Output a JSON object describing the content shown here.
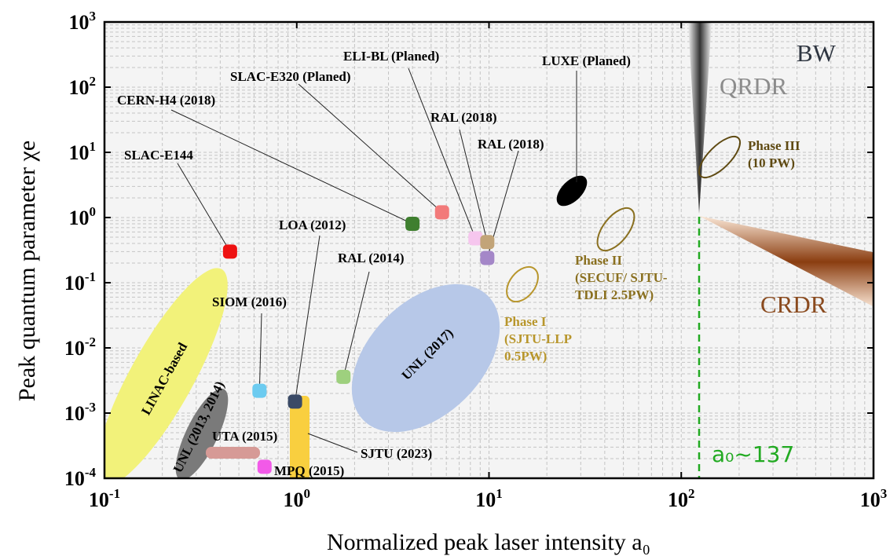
{
  "chart_data": {
    "type": "scatter",
    "x_scale": "log",
    "y_scale": "log",
    "xlim": [
      0.1,
      1000
    ],
    "ylim": [
      0.0001,
      1000
    ],
    "grid": true,
    "xlabel": "Normalized peak laser intensity a₀",
    "ylabel": "Peak quantum parameter χe",
    "x_ticks": [
      {
        "value": 0.1,
        "base": "10",
        "exp": "-1"
      },
      {
        "value": 1,
        "base": "10",
        "exp": "0"
      },
      {
        "value": 10,
        "base": "10",
        "exp": "1"
      },
      {
        "value": 100,
        "base": "10",
        "exp": "2"
      },
      {
        "value": 1000,
        "base": "10",
        "exp": "3"
      }
    ],
    "y_ticks": [
      {
        "value": 0.0001,
        "base": "10",
        "exp": "-4"
      },
      {
        "value": 0.001,
        "base": "10",
        "exp": "-3"
      },
      {
        "value": 0.01,
        "base": "10",
        "exp": "-2"
      },
      {
        "value": 0.1,
        "base": "10",
        "exp": "-1"
      },
      {
        "value": 1,
        "base": "10",
        "exp": "0"
      },
      {
        "value": 10,
        "base": "10",
        "exp": "1"
      },
      {
        "value": 100,
        "base": "10",
        "exp": "2"
      },
      {
        "value": 1000,
        "base": "10",
        "exp": "3"
      }
    ],
    "experiments": [
      {
        "label": "SLAC-E144",
        "x": 0.45,
        "y": 0.3,
        "color": "#ee1111"
      },
      {
        "label": "CERN-H4 (2018)",
        "x": 4.0,
        "y": 0.8,
        "color": "#3f7f2f"
      },
      {
        "label": "SLAC-E320 (Planed)",
        "x": 5.7,
        "y": 1.2,
        "color": "#f27a7a"
      },
      {
        "label": "ELI-BL (Planed)",
        "x": 8.5,
        "y": 0.48,
        "color": "#f6c6ee"
      },
      {
        "label": "RAL (2018)",
        "x": 9.8,
        "y": 0.42,
        "color": "#c2a478"
      },
      {
        "label": "RAL (2018)",
        "x": 9.8,
        "y": 0.24,
        "color": "#a487c8"
      },
      {
        "label": "LOA (2012)",
        "x": 0.98,
        "y": 0.0015,
        "color": "#3a4a66"
      },
      {
        "label": "RAL (2014)",
        "x": 1.75,
        "y": 0.0036,
        "color": "#9ed07e"
      },
      {
        "label": "SIOM (2016)",
        "x": 0.64,
        "y": 0.0022,
        "color": "#6ccbf0"
      },
      {
        "label": "MPQ (2015)",
        "x": 0.68,
        "y": 0.00015,
        "color": "#f25ae8"
      }
    ],
    "regions": [
      {
        "label": "LINAC-based",
        "color": "#f2f27a"
      },
      {
        "label": "UNL (2013, 2014)",
        "color": "#7a7a7a"
      },
      {
        "label": "UTA (2015)",
        "color": "#d69a96"
      },
      {
        "label": "SJTU (2023)",
        "color": "#f9cf3f"
      },
      {
        "label": "UNL (2017)",
        "color": "#b7c8e8"
      },
      {
        "label": "LUXE (Planed)",
        "color": "#000000"
      }
    ],
    "phases": [
      {
        "label_lines": [
          "Phase I",
          "(SJTU-LLP",
          "0.5PW)"
        ],
        "color": "#b8962c"
      },
      {
        "label_lines": [
          "Phase II",
          "(SECUF/ SJTU-",
          "TDLI 2.5PW)"
        ],
        "color": "#8a7020"
      },
      {
        "label_lines": [
          "Phase III",
          "(10 PW)"
        ],
        "color": "#5f4a12"
      }
    ],
    "annotations": {
      "bw": "BW",
      "qrdr": "QRDR",
      "crdr": "CRDR",
      "a0_marker": "a₀~137",
      "a0_marker_x": 137
    }
  }
}
